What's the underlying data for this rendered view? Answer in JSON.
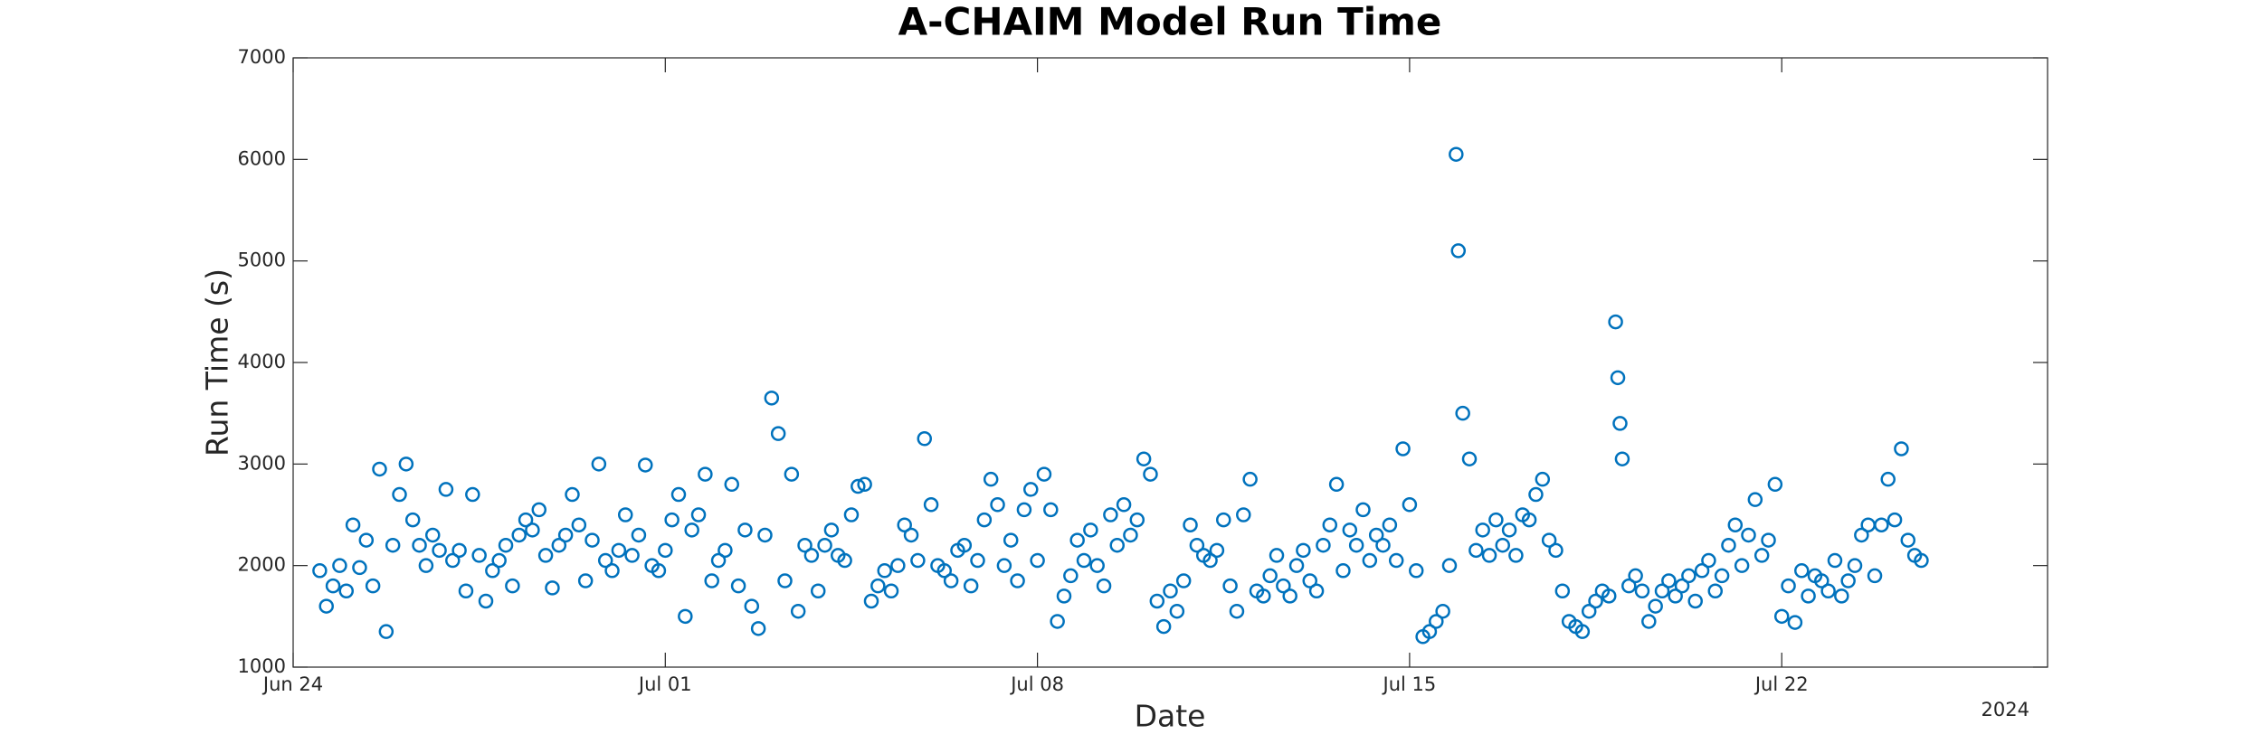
{
  "chart_data": {
    "type": "scatter",
    "title": "A-CHAIM Model Run Time",
    "x_label": "Date",
    "y_label": "Run Time (s)",
    "x_year_label": "2024",
    "color": "#0072bd",
    "xlim": [
      "2024-06-24T00:00",
      "2024-07-27T00:00"
    ],
    "xticks": [
      {
        "value": "2024-06-24T00:00",
        "label": "Jun 24"
      },
      {
        "value": "2024-07-01T00:00",
        "label": "Jul 01"
      },
      {
        "value": "2024-07-08T00:00",
        "label": "Jul 08"
      },
      {
        "value": "2024-07-15T00:00",
        "label": "Jul 15"
      },
      {
        "value": "2024-07-22T00:00",
        "label": "Jul 22"
      }
    ],
    "ylim": [
      1000,
      7000
    ],
    "yticks": [
      1000,
      2000,
      3000,
      4000,
      5000,
      6000,
      7000
    ],
    "x": [
      "2024-06-24T12:00",
      "2024-06-24T15:00",
      "2024-06-24T18:00",
      "2024-06-24T21:00",
      "2024-06-25T00:00",
      "2024-06-25T03:00",
      "2024-06-25T06:00",
      "2024-06-25T09:00",
      "2024-06-25T12:00",
      "2024-06-25T15:00",
      "2024-06-25T18:00",
      "2024-06-25T21:00",
      "2024-06-26T00:00",
      "2024-06-26T03:00",
      "2024-06-26T06:00",
      "2024-06-26T09:00",
      "2024-06-26T12:00",
      "2024-06-26T15:00",
      "2024-06-26T18:00",
      "2024-06-26T21:00",
      "2024-06-27T00:00",
      "2024-06-27T03:00",
      "2024-06-27T06:00",
      "2024-06-27T09:00",
      "2024-06-27T12:00",
      "2024-06-27T15:00",
      "2024-06-27T18:00",
      "2024-06-27T21:00",
      "2024-06-28T00:00",
      "2024-06-28T03:00",
      "2024-06-28T06:00",
      "2024-06-28T09:00",
      "2024-06-28T12:00",
      "2024-06-28T15:00",
      "2024-06-28T18:00",
      "2024-06-28T21:00",
      "2024-06-29T00:00",
      "2024-06-29T03:00",
      "2024-06-29T06:00",
      "2024-06-29T09:00",
      "2024-06-29T12:00",
      "2024-06-29T15:00",
      "2024-06-29T18:00",
      "2024-06-29T21:00",
      "2024-06-30T00:00",
      "2024-06-30T03:00",
      "2024-06-30T06:00",
      "2024-06-30T09:00",
      "2024-06-30T12:00",
      "2024-06-30T15:00",
      "2024-06-30T18:00",
      "2024-06-30T21:00",
      "2024-07-01T00:00",
      "2024-07-01T03:00",
      "2024-07-01T06:00",
      "2024-07-01T09:00",
      "2024-07-01T12:00",
      "2024-07-01T15:00",
      "2024-07-01T18:00",
      "2024-07-01T21:00",
      "2024-07-02T00:00",
      "2024-07-02T03:00",
      "2024-07-02T06:00",
      "2024-07-02T09:00",
      "2024-07-02T12:00",
      "2024-07-02T15:00",
      "2024-07-02T18:00",
      "2024-07-02T21:00",
      "2024-07-03T00:00",
      "2024-07-03T03:00",
      "2024-07-03T06:00",
      "2024-07-03T09:00",
      "2024-07-03T12:00",
      "2024-07-03T15:00",
      "2024-07-03T18:00",
      "2024-07-03T21:00",
      "2024-07-04T00:00",
      "2024-07-04T03:00",
      "2024-07-04T06:00",
      "2024-07-04T09:00",
      "2024-07-04T12:00",
      "2024-07-04T15:00",
      "2024-07-04T18:00",
      "2024-07-04T21:00",
      "2024-07-05T00:00",
      "2024-07-05T03:00",
      "2024-07-05T06:00",
      "2024-07-05T09:00",
      "2024-07-05T12:00",
      "2024-07-05T15:00",
      "2024-07-05T18:00",
      "2024-07-05T21:00",
      "2024-07-06T00:00",
      "2024-07-06T03:00",
      "2024-07-06T06:00",
      "2024-07-06T09:00",
      "2024-07-06T12:00",
      "2024-07-06T15:00",
      "2024-07-06T18:00",
      "2024-07-06T21:00",
      "2024-07-07T00:00",
      "2024-07-07T03:00",
      "2024-07-07T06:00",
      "2024-07-07T09:00",
      "2024-07-07T12:00",
      "2024-07-07T15:00",
      "2024-07-07T18:00",
      "2024-07-07T21:00",
      "2024-07-08T00:00",
      "2024-07-08T03:00",
      "2024-07-08T06:00",
      "2024-07-08T09:00",
      "2024-07-08T12:00",
      "2024-07-08T15:00",
      "2024-07-08T18:00",
      "2024-07-08T21:00",
      "2024-07-09T00:00",
      "2024-07-09T03:00",
      "2024-07-09T06:00",
      "2024-07-09T09:00",
      "2024-07-09T12:00",
      "2024-07-09T15:00",
      "2024-07-09T18:00",
      "2024-07-09T21:00",
      "2024-07-10T00:00",
      "2024-07-10T03:00",
      "2024-07-10T06:00",
      "2024-07-10T09:00",
      "2024-07-10T12:00",
      "2024-07-10T15:00",
      "2024-07-10T18:00",
      "2024-07-10T21:00",
      "2024-07-11T00:00",
      "2024-07-11T03:00",
      "2024-07-11T06:00",
      "2024-07-11T09:00",
      "2024-07-11T12:00",
      "2024-07-11T15:00",
      "2024-07-11T18:00",
      "2024-07-11T21:00",
      "2024-07-12T00:00",
      "2024-07-12T03:00",
      "2024-07-12T06:00",
      "2024-07-12T09:00",
      "2024-07-12T12:00",
      "2024-07-12T15:00",
      "2024-07-12T18:00",
      "2024-07-12T21:00",
      "2024-07-13T00:00",
      "2024-07-13T03:00",
      "2024-07-13T06:00",
      "2024-07-13T09:00",
      "2024-07-13T12:00",
      "2024-07-13T15:00",
      "2024-07-13T18:00",
      "2024-07-13T21:00",
      "2024-07-14T00:00",
      "2024-07-14T03:00",
      "2024-07-14T06:00",
      "2024-07-14T09:00",
      "2024-07-14T12:00",
      "2024-07-14T15:00",
      "2024-07-14T18:00",
      "2024-07-14T21:00",
      "2024-07-15T00:00",
      "2024-07-15T03:00",
      "2024-07-15T06:00",
      "2024-07-15T09:00",
      "2024-07-15T12:00",
      "2024-07-15T15:00",
      "2024-07-15T18:00",
      "2024-07-15T21:00",
      "2024-07-15T22:00",
      "2024-07-16T00:00",
      "2024-07-16T03:00",
      "2024-07-16T06:00",
      "2024-07-16T09:00",
      "2024-07-16T12:00",
      "2024-07-16T15:00",
      "2024-07-16T18:00",
      "2024-07-16T21:00",
      "2024-07-17T00:00",
      "2024-07-17T03:00",
      "2024-07-17T06:00",
      "2024-07-17T09:00",
      "2024-07-17T12:00",
      "2024-07-17T15:00",
      "2024-07-17T18:00",
      "2024-07-17T21:00",
      "2024-07-18T00:00",
      "2024-07-18T03:00",
      "2024-07-18T06:00",
      "2024-07-18T09:00",
      "2024-07-18T12:00",
      "2024-07-18T15:00",
      "2024-07-18T18:00",
      "2024-07-18T21:00",
      "2024-07-18T22:00",
      "2024-07-18T23:00",
      "2024-07-19T00:00",
      "2024-07-19T03:00",
      "2024-07-19T06:00",
      "2024-07-19T09:00",
      "2024-07-19T12:00",
      "2024-07-19T15:00",
      "2024-07-19T18:00",
      "2024-07-19T21:00",
      "2024-07-20T00:00",
      "2024-07-20T03:00",
      "2024-07-20T06:00",
      "2024-07-20T09:00",
      "2024-07-20T12:00",
      "2024-07-20T15:00",
      "2024-07-20T18:00",
      "2024-07-20T21:00",
      "2024-07-21T00:00",
      "2024-07-21T03:00",
      "2024-07-21T06:00",
      "2024-07-21T09:00",
      "2024-07-21T12:00",
      "2024-07-21T15:00",
      "2024-07-21T18:00",
      "2024-07-21T21:00",
      "2024-07-22T00:00",
      "2024-07-22T03:00",
      "2024-07-22T06:00",
      "2024-07-22T09:00",
      "2024-07-22T12:00",
      "2024-07-22T15:00",
      "2024-07-22T18:00",
      "2024-07-22T21:00",
      "2024-07-23T00:00",
      "2024-07-23T03:00",
      "2024-07-23T06:00",
      "2024-07-23T09:00",
      "2024-07-23T12:00",
      "2024-07-23T15:00",
      "2024-07-23T18:00",
      "2024-07-23T21:00",
      "2024-07-24T00:00",
      "2024-07-24T03:00",
      "2024-07-24T06:00",
      "2024-07-24T09:00",
      "2024-07-24T12:00",
      "2024-07-24T15:00"
    ],
    "values": [
      1950,
      1600,
      1800,
      2000,
      1750,
      2400,
      1980,
      2250,
      1800,
      2950,
      1350,
      2200,
      2700,
      3000,
      2450,
      2200,
      2000,
      2300,
      2150,
      2750,
      2050,
      2150,
      1750,
      2700,
      2100,
      1650,
      1950,
      2050,
      2200,
      1800,
      2300,
      2450,
      2350,
      2550,
      2100,
      1780,
      2200,
      2300,
      2700,
      2400,
      1850,
      2250,
      3000,
      2050,
      1950,
      2150,
      2500,
      2100,
      2300,
      2990,
      2000,
      1950,
      2150,
      2450,
      2700,
      1500,
      2350,
      2500,
      2900,
      1850,
      2050,
      2150,
      2800,
      1800,
      2350,
      1600,
      1380,
      2300,
      3650,
      3300,
      1850,
      2900,
      1550,
      2200,
      2100,
      1750,
      2200,
      2350,
      2100,
      2050,
      2500,
      2780,
      2800,
      1650,
      1800,
      1950,
      1750,
      2000,
      2400,
      2300,
      2050,
      3250,
      2600,
      2000,
      1950,
      1850,
      2150,
      2200,
      1800,
      2050,
      2450,
      2850,
      2600,
      2000,
      2250,
      1850,
      2550,
      2750,
      2050,
      2900,
      2550,
      1450,
      1700,
      1900,
      2250,
      2050,
      2350,
      2000,
      1800,
      2500,
      2200,
      2600,
      2300,
      2450,
      3050,
      2900,
      1650,
      1400,
      1750,
      1550,
      1850,
      2400,
      2200,
      2100,
      2050,
      2150,
      2450,
      1800,
      1550,
      2500,
      2850,
      1750,
      1700,
      1900,
      2100,
      1800,
      1700,
      2000,
      2150,
      1850,
      1750,
      2200,
      2400,
      2800,
      1950,
      2350,
      2200,
      2550,
      2050,
      2300,
      2200,
      2400,
      2050,
      3150,
      2600,
      1950,
      1300,
      1350,
      1450,
      1550,
      2000,
      6050,
      5100,
      3500,
      3050,
      2150,
      2350,
      2100,
      2450,
      2200,
      2350,
      2100,
      2500,
      2450,
      2700,
      2850,
      2250,
      2150,
      1750,
      1450,
      1400,
      1350,
      1550,
      1650,
      1750,
      1700,
      4400,
      3850,
      3400,
      3050,
      1800,
      1900,
      1750,
      1450,
      1600,
      1750,
      1850,
      1700,
      1800,
      1900,
      1650,
      1950,
      2050,
      1750,
      1900,
      2200,
      2400,
      2000,
      2300,
      2650,
      2100,
      2250,
      2800,
      1500,
      1800,
      1440,
      1950,
      1700,
      1900,
      1850,
      1750,
      2050,
      1700,
      1850,
      2000,
      2300,
      2400,
      1900,
      2400,
      2850,
      2450,
      3150,
      2250,
      2100,
      2050
    ]
  }
}
